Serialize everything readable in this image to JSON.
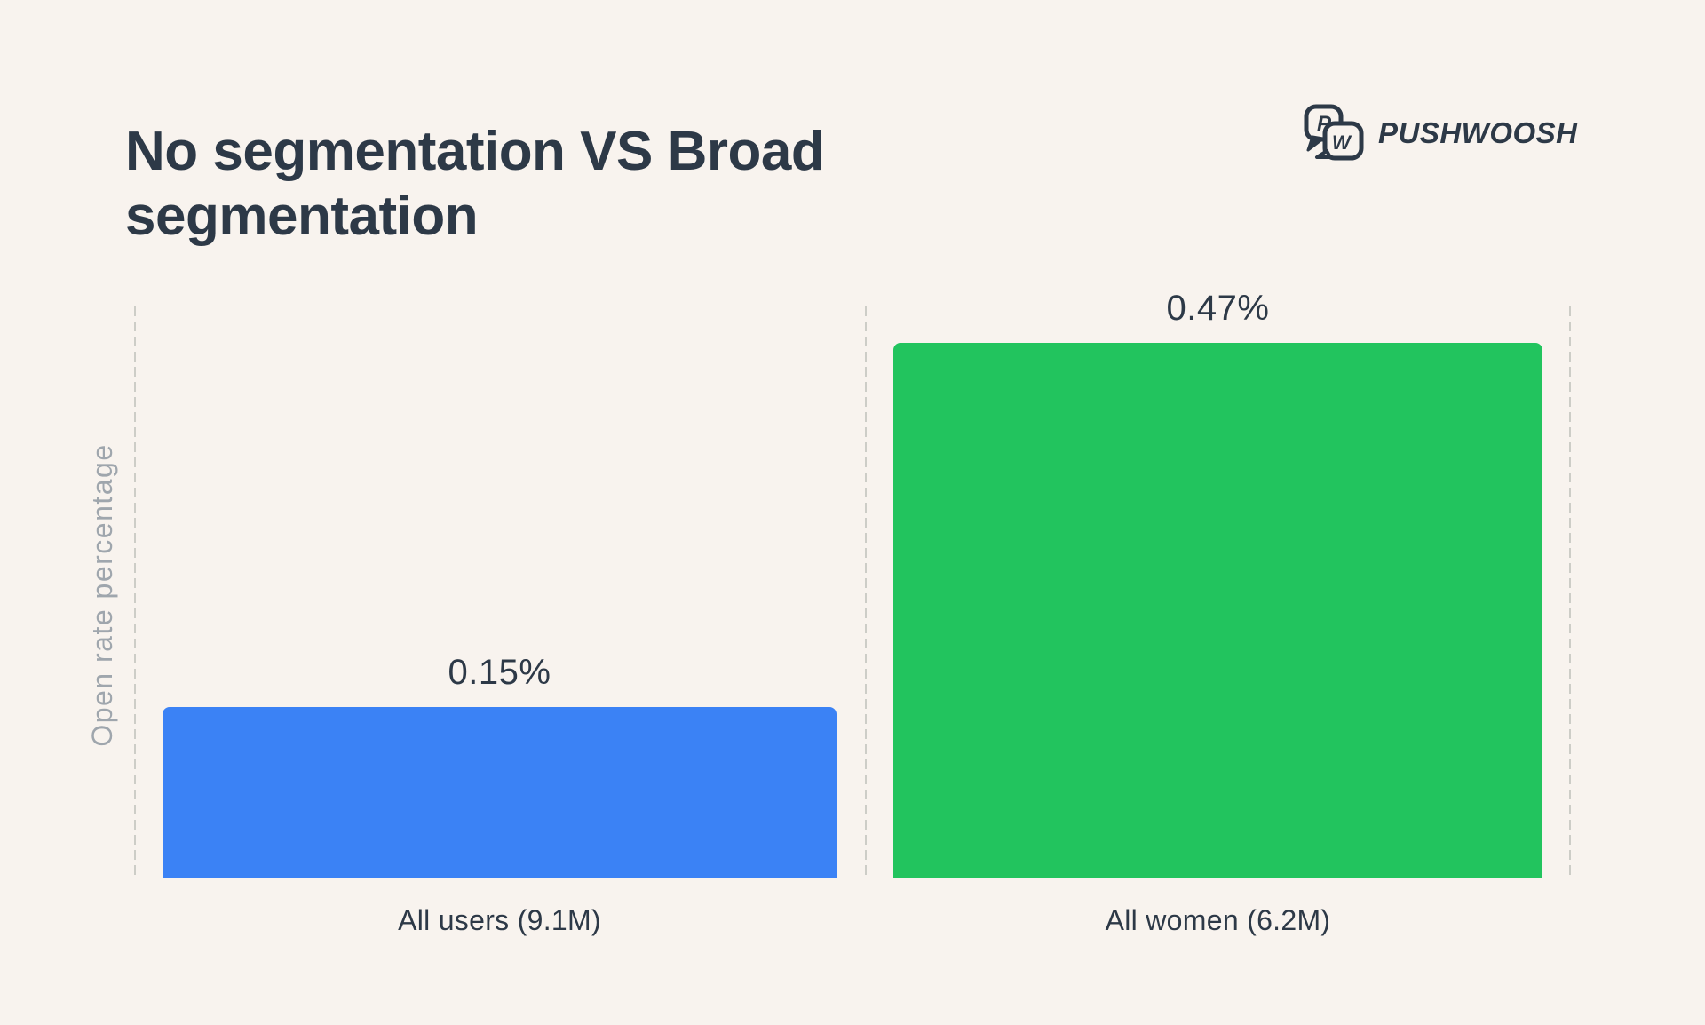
{
  "page": {
    "background_color": "#F8F3EE"
  },
  "header": {
    "title_line1": "No segmentation VS Broad",
    "title_line2": "segmentation",
    "brand": {
      "name": "PUSHWOOSH",
      "icon": "pushwoosh-speech-bubbles-pw-icon",
      "color": "#2D3947"
    }
  },
  "chart_data": {
    "type": "bar",
    "title": "No segmentation VS Broad segmentation",
    "xlabel": "",
    "ylabel": "Open rate percentage",
    "categories": [
      "All users (9.1M)",
      "All women (6.2M)"
    ],
    "values": [
      0.15,
      0.47
    ],
    "value_labels": [
      "0.15%",
      "0.47%"
    ],
    "series": [
      {
        "name": "No segmentation",
        "category": "All users (9.1M)",
        "value": 0.15,
        "color": "#3B82F5"
      },
      {
        "name": "Broad segmentation",
        "category": "All women (6.2M)",
        "value": 0.47,
        "color": "#22C45E"
      }
    ],
    "bar_colors": [
      "#3B82F5",
      "#22C45E"
    ],
    "ylim": [
      0,
      0.5
    ],
    "legend_position": "none",
    "grid": "three vertical dashed separator lines (left, middle, right), no horizontal axis line",
    "grid_color": "#CDCDC7"
  },
  "colors": {
    "background": "#F8F3EE",
    "text_dark": "#2D3947",
    "axis_label_gray": "#9FA6AD",
    "dashed_line": "#CDCDC7",
    "bar_blue": "#3B82F5",
    "bar_green": "#22C45E"
  }
}
